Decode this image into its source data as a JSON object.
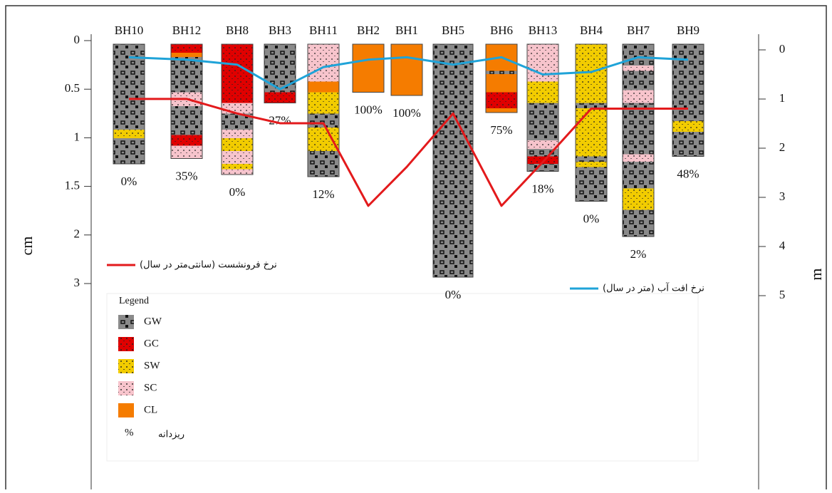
{
  "chart_data": {
    "type": "line",
    "ylabel": "cm",
    "y2label": "m",
    "ylim": [
      0,
      3
    ],
    "yticks": [
      0,
      0.5,
      1,
      1.5,
      2,
      3
    ],
    "y2lim": [
      0,
      5
    ],
    "y2ticks": [
      0,
      1,
      2,
      3,
      4,
      5
    ],
    "categories": [
      "BH10",
      "BH12",
      "BH8",
      "BH3",
      "BH11",
      "BH2",
      "BH1",
      "BH5",
      "BH6",
      "BH13",
      "BH4",
      "BH7",
      "BH9"
    ],
    "series": [
      {
        "name": "نرخ فرونشست (سانتی‌متر در سال)",
        "color": "#e31a1c",
        "values": [
          0.6,
          0.6,
          0.75,
          0.85,
          0.85,
          1.7,
          1.3,
          0.75,
          1.7,
          1.25,
          0.7,
          0.7,
          0.7
        ]
      },
      {
        "name": "نرخ افت آب (متر در سال)",
        "color": "#1fa3d8",
        "axis": "y2",
        "values": [
          0.15,
          0.2,
          0.3,
          0.8,
          0.35,
          0.2,
          0.15,
          0.3,
          0.15,
          0.5,
          0.45,
          0.15,
          0.2
        ]
      }
    ],
    "fines_percent": {
      "values": [
        0,
        35,
        0,
        27,
        12,
        100,
        100,
        0,
        75,
        18,
        0,
        2,
        48
      ],
      "value_labels": [
        "0%",
        "35%",
        "0%",
        "27%",
        "12%",
        "100%",
        "100%",
        "0%",
        "75%",
        "18%",
        "0%",
        "2%",
        "48%"
      ]
    },
    "depth_ylim": [
      0,
      220
    ],
    "boreholes": [
      [
        {
          "soil": "GW",
          "from": 0,
          "to": 80
        },
        {
          "soil": "SW",
          "from": 80,
          "to": 88
        },
        {
          "soil": "GW",
          "from": 88,
          "to": 112
        }
      ],
      [
        {
          "soil": "GC",
          "from": 0,
          "to": 8
        },
        {
          "soil": "CL",
          "from": 8,
          "to": 12
        },
        {
          "soil": "GW",
          "from": 12,
          "to": 45
        },
        {
          "soil": "SC",
          "from": 45,
          "to": 58
        },
        {
          "soil": "GW",
          "from": 58,
          "to": 85
        },
        {
          "soil": "GC",
          "from": 85,
          "to": 95
        },
        {
          "soil": "SC",
          "from": 95,
          "to": 107
        }
      ],
      [
        {
          "soil": "GC",
          "from": 0,
          "to": 55
        },
        {
          "soil": "SC",
          "from": 55,
          "to": 65
        },
        {
          "soil": "GW",
          "from": 65,
          "to": 80
        },
        {
          "soil": "SC",
          "from": 80,
          "to": 88
        },
        {
          "soil": "SW",
          "from": 88,
          "to": 100
        },
        {
          "soil": "SC",
          "from": 100,
          "to": 112
        },
        {
          "soil": "SW",
          "from": 112,
          "to": 117
        },
        {
          "soil": "SC",
          "from": 117,
          "to": 122
        }
      ],
      [
        {
          "soil": "GW",
          "from": 0,
          "to": 45
        },
        {
          "soil": "GC",
          "from": 45,
          "to": 55
        }
      ],
      [
        {
          "soil": "SC",
          "from": 0,
          "to": 35
        },
        {
          "soil": "CL",
          "from": 35,
          "to": 45
        },
        {
          "soil": "SW",
          "from": 45,
          "to": 65
        },
        {
          "soil": "GW",
          "from": 65,
          "to": 78
        },
        {
          "soil": "SW",
          "from": 78,
          "to": 100
        },
        {
          "soil": "GW",
          "from": 100,
          "to": 124
        }
      ],
      [
        {
          "soil": "CL",
          "from": 0,
          "to": 45
        }
      ],
      [
        {
          "soil": "CL",
          "from": 0,
          "to": 48
        }
      ],
      [
        {
          "soil": "GW",
          "from": 0,
          "to": 218
        }
      ],
      [
        {
          "soil": "CL",
          "from": 0,
          "to": 25
        },
        {
          "soil": "GW",
          "from": 25,
          "to": 28
        },
        {
          "soil": "CL",
          "from": 28,
          "to": 45
        },
        {
          "soil": "GC",
          "from": 45,
          "to": 60
        },
        {
          "soil": "CL",
          "from": 60,
          "to": 64
        }
      ],
      [
        {
          "soil": "SC",
          "from": 0,
          "to": 35
        },
        {
          "soil": "SW",
          "from": 35,
          "to": 55
        },
        {
          "soil": "GW",
          "from": 55,
          "to": 90
        },
        {
          "soil": "SC",
          "from": 90,
          "to": 98
        },
        {
          "soil": "GW",
          "from": 98,
          "to": 105
        },
        {
          "soil": "GC",
          "from": 105,
          "to": 112
        },
        {
          "soil": "GW",
          "from": 112,
          "to": 119
        }
      ],
      [
        {
          "soil": "SW",
          "from": 0,
          "to": 55
        },
        {
          "soil": "GW",
          "from": 55,
          "to": 60
        },
        {
          "soil": "SW",
          "from": 60,
          "to": 105
        },
        {
          "soil": "GW",
          "from": 105,
          "to": 110
        },
        {
          "soil": "SW",
          "from": 110,
          "to": 115
        },
        {
          "soil": "GW",
          "from": 115,
          "to": 147
        }
      ],
      [
        {
          "soil": "GW",
          "from": 0,
          "to": 20
        },
        {
          "soil": "SC",
          "from": 20,
          "to": 25
        },
        {
          "soil": "GW",
          "from": 25,
          "to": 43
        },
        {
          "soil": "SC",
          "from": 43,
          "to": 55
        },
        {
          "soil": "GW",
          "from": 55,
          "to": 103
        },
        {
          "soil": "SC",
          "from": 103,
          "to": 110
        },
        {
          "soil": "GW",
          "from": 110,
          "to": 135
        },
        {
          "soil": "SW",
          "from": 135,
          "to": 155
        },
        {
          "soil": "GW",
          "from": 155,
          "to": 180
        }
      ],
      [
        {
          "soil": "GW",
          "from": 0,
          "to": 72
        },
        {
          "soil": "SW",
          "from": 72,
          "to": 82
        },
        {
          "soil": "GW",
          "from": 82,
          "to": 105
        }
      ]
    ],
    "legend": {
      "title": "Legend",
      "items": [
        {
          "code": "GW",
          "color": "#8a8a8a"
        },
        {
          "code": "GC",
          "color": "#e00000"
        },
        {
          "code": "SW",
          "color": "#f2cc00"
        },
        {
          "code": "SC",
          "color": "#f7c4cc"
        },
        {
          "code": "CL",
          "color": "#f57c00"
        }
      ],
      "fines_symbol": "%",
      "fines_label": "ریزدانه"
    }
  }
}
